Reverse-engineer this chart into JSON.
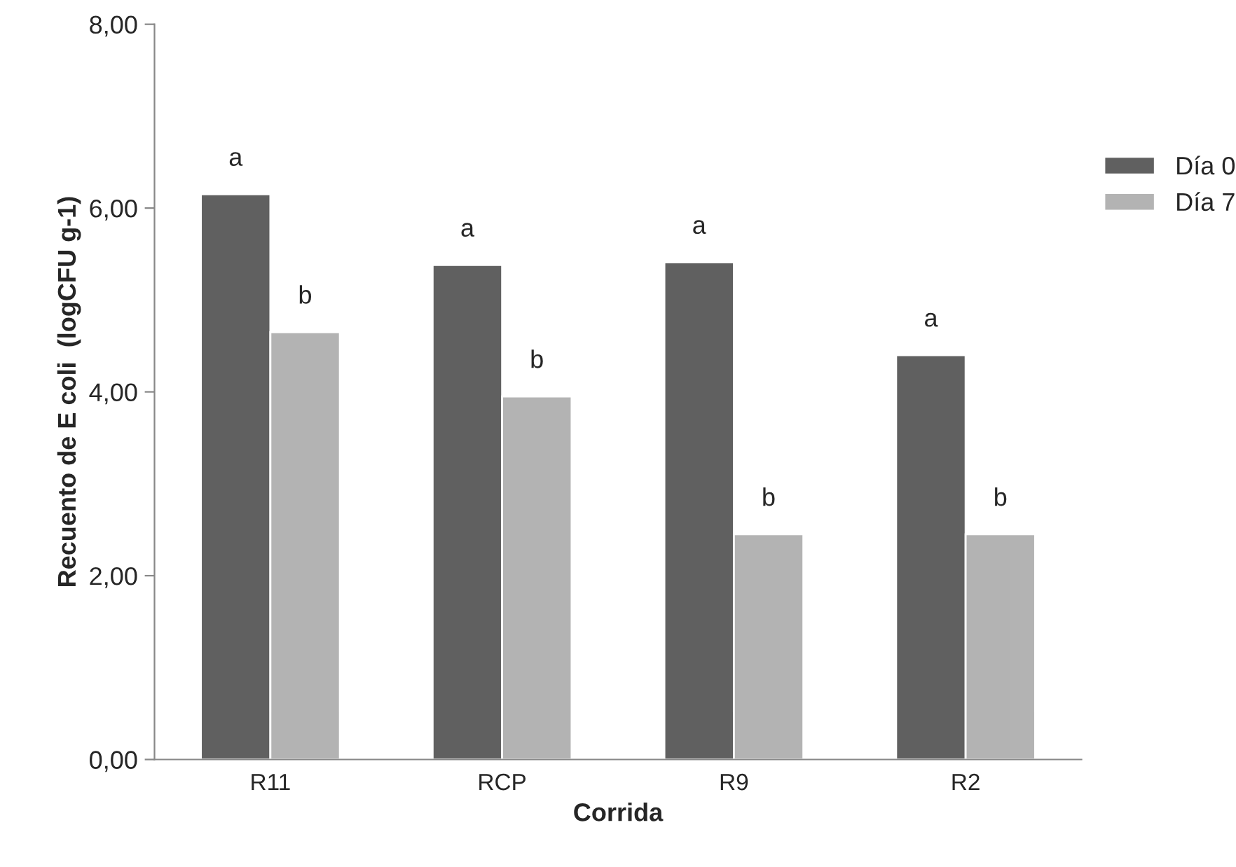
{
  "chart_data": {
    "type": "bar",
    "xlabel": "Corrida",
    "ylabel": "Recuento de E coli  (logCFU g-1)",
    "categories": [
      "R11",
      "RCP",
      "R9",
      "R2"
    ],
    "series": [
      {
        "name": "Día 0",
        "color": "#606060",
        "values": [
          6.15,
          5.38,
          5.41,
          4.4
        ],
        "value_labels": [
          "a",
          "a",
          "a",
          "a"
        ]
      },
      {
        "name": "Día 7",
        "color": "#b3b3b3",
        "values": [
          4.65,
          3.95,
          2.45,
          2.45
        ],
        "value_labels": [
          "b",
          "b",
          "b",
          "b"
        ]
      }
    ],
    "ylim": [
      0,
      8
    ],
    "yticks": [
      {
        "value": 0,
        "label": "0,00"
      },
      {
        "value": 2,
        "label": "2,00"
      },
      {
        "value": 4,
        "label": "4,00"
      },
      {
        "value": 6,
        "label": "6,00"
      },
      {
        "value": 8,
        "label": "8,00"
      }
    ],
    "grid": false,
    "legend": "right"
  }
}
